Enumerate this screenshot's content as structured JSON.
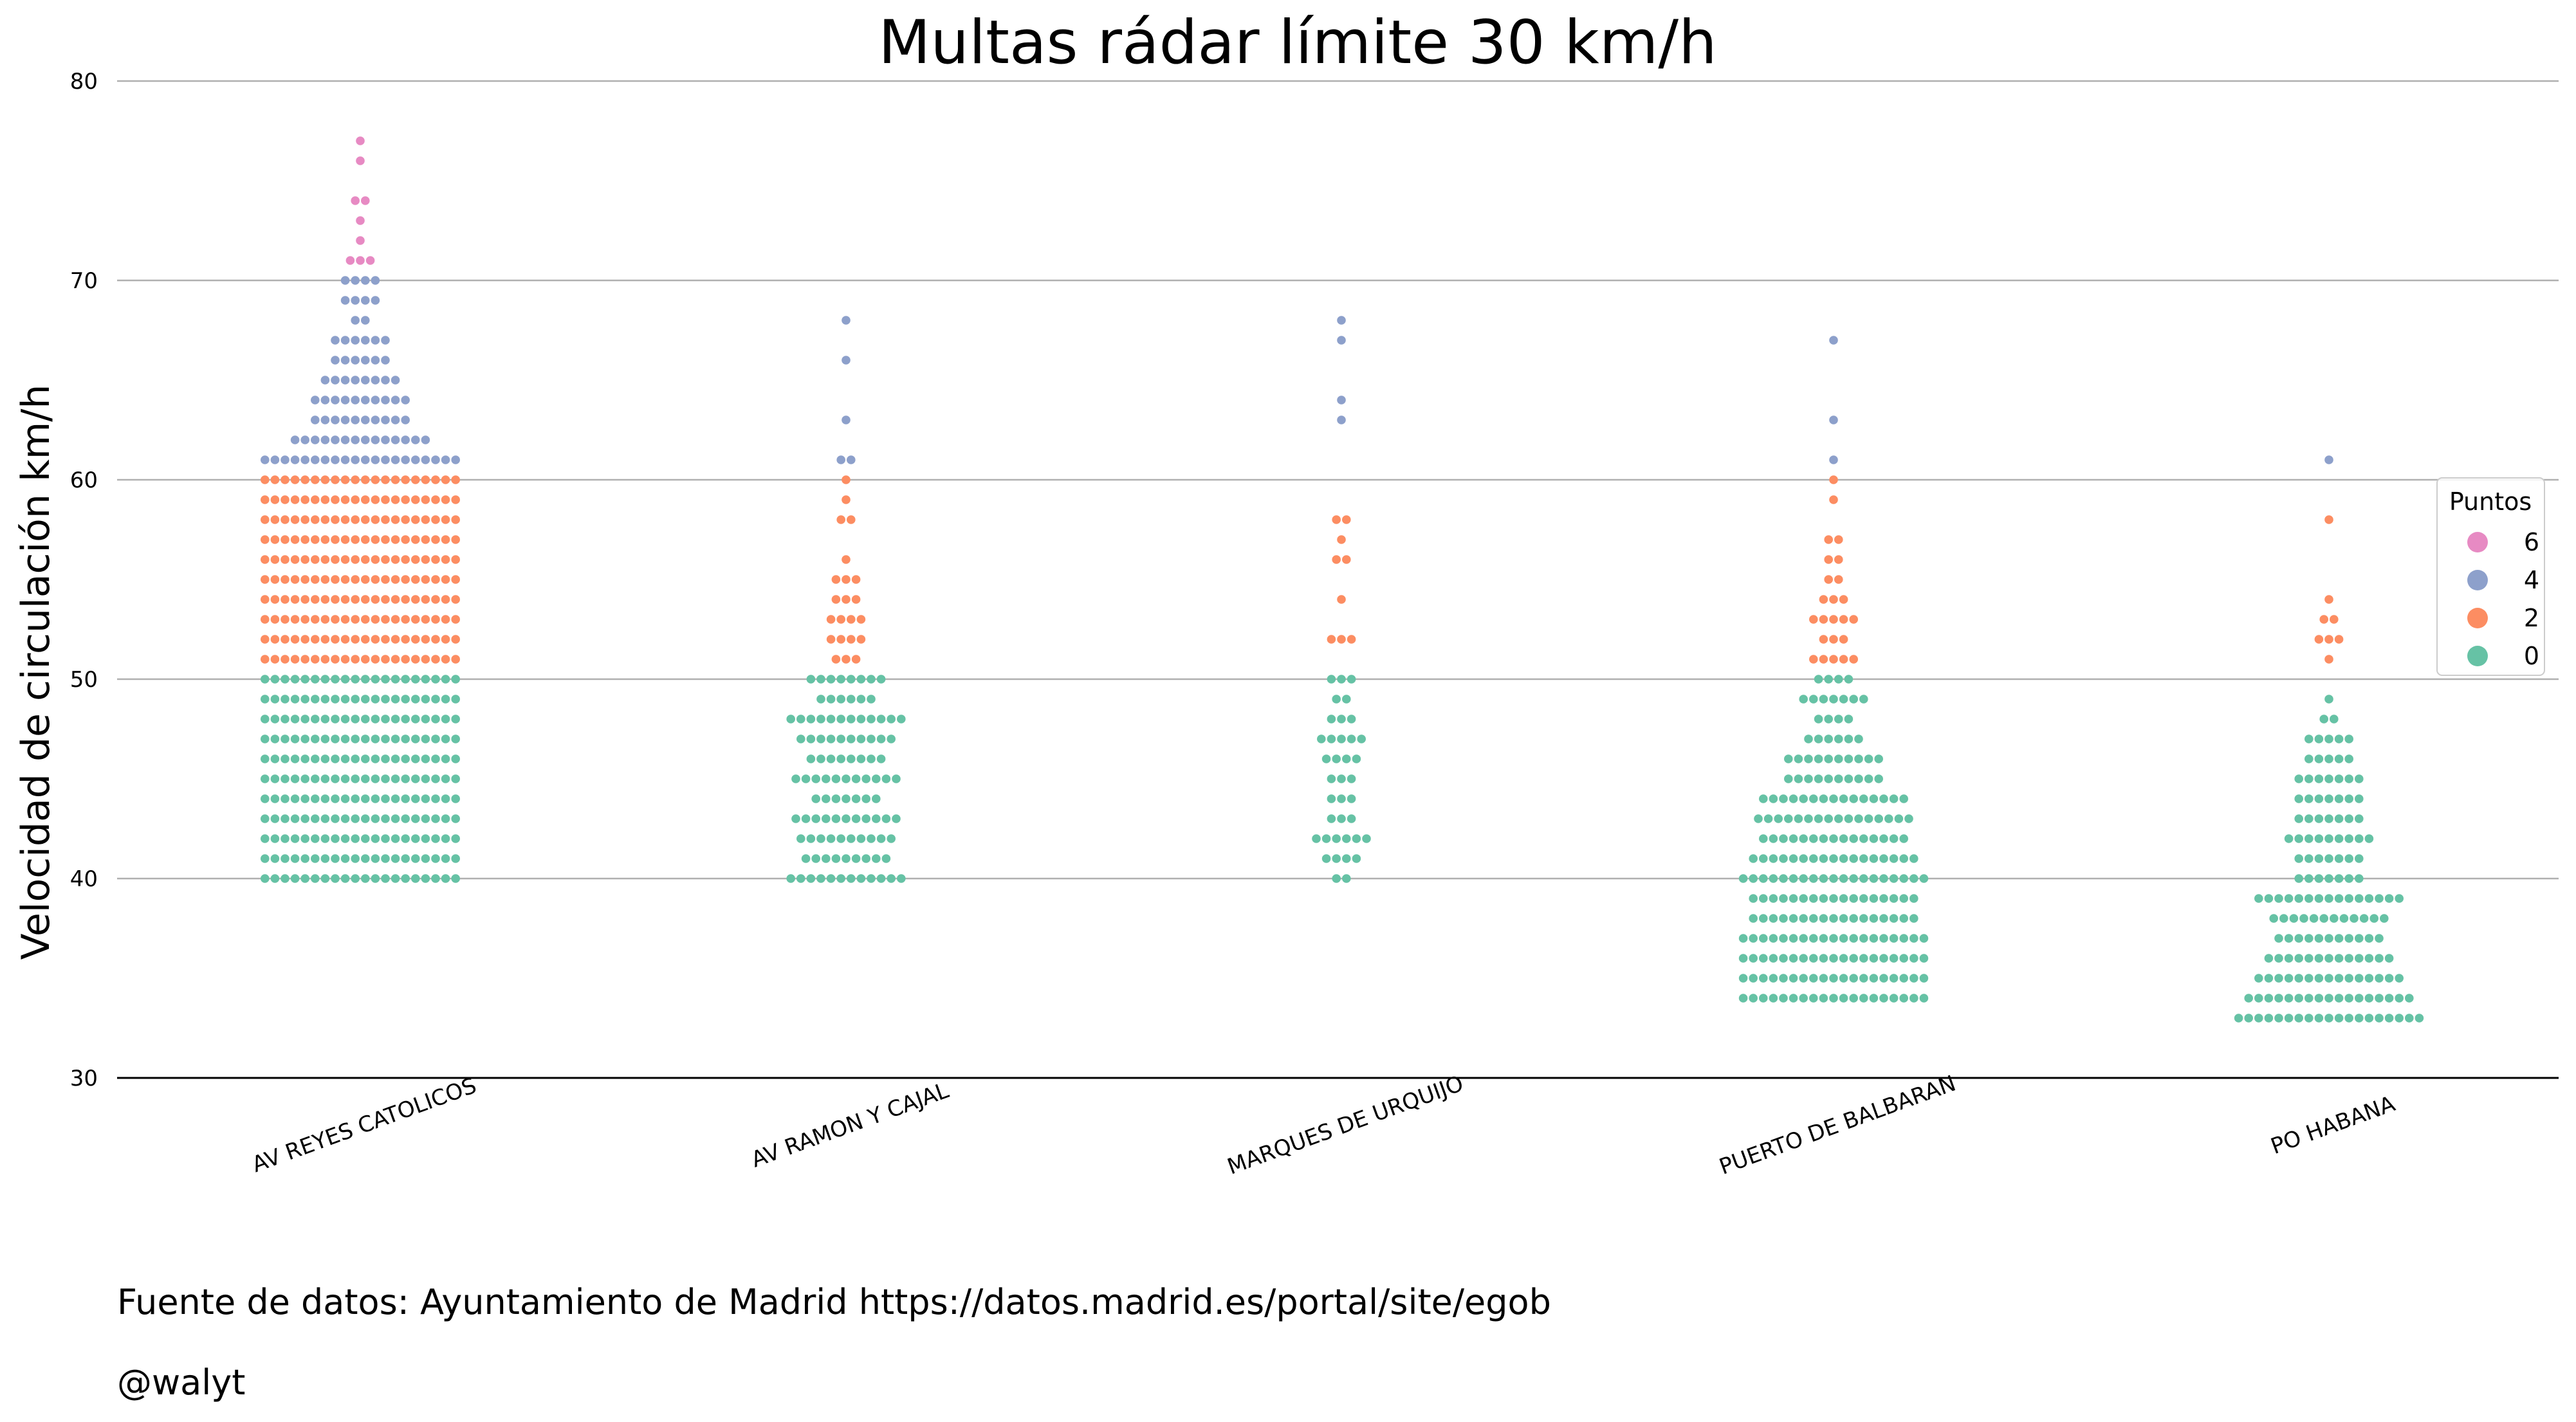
{
  "chart_data": {
    "type": "swarm",
    "title": "Multas rádar límite 30 km/h",
    "xlabel": "",
    "ylabel": "Velocidad de circulación km/h",
    "ylim": [
      30,
      80
    ],
    "yticks": [
      30,
      40,
      50,
      60,
      70,
      80
    ],
    "grid": "horizontal",
    "categories": [
      "AV REYES CATOLICOS",
      "AV RAMON Y CAJAL",
      "MARQUES DE URQUIJO",
      "PUERTO DE BALBARAN",
      "PO HABANA"
    ],
    "legend": {
      "title": "Puntos",
      "placement": "right",
      "entries": [
        {
          "label": "6",
          "color": "#e78ac3"
        },
        {
          "label": "4",
          "color": "#8da0cb"
        },
        {
          "label": "2",
          "color": "#fc8d62"
        },
        {
          "label": "0",
          "color": "#66c2a5"
        }
      ]
    },
    "colors": {
      "0": "#66c2a5",
      "2": "#fc8d62",
      "4": "#8da0cb",
      "6": "#e78ac3"
    },
    "groups": [
      {
        "category": "AV REYES CATOLICOS",
        "counts": [
          [
            40,
            20
          ],
          [
            41,
            20
          ],
          [
            42,
            20
          ],
          [
            43,
            20
          ],
          [
            44,
            20
          ],
          [
            45,
            20
          ],
          [
            46,
            20
          ],
          [
            47,
            20
          ],
          [
            48,
            20
          ],
          [
            49,
            20
          ],
          [
            50,
            20
          ],
          [
            51,
            20
          ],
          [
            52,
            20
          ],
          [
            53,
            20
          ],
          [
            54,
            20
          ],
          [
            55,
            20
          ],
          [
            56,
            20
          ],
          [
            57,
            20
          ],
          [
            58,
            20
          ],
          [
            59,
            20
          ],
          [
            60,
            20
          ],
          [
            61,
            20
          ],
          [
            62,
            14
          ],
          [
            63,
            10
          ],
          [
            64,
            10
          ],
          [
            65,
            8
          ],
          [
            66,
            6
          ],
          [
            67,
            6
          ],
          [
            68,
            2
          ],
          [
            69,
            4
          ],
          [
            70,
            4
          ],
          [
            71,
            3
          ],
          [
            72,
            1
          ],
          [
            73,
            1
          ],
          [
            74,
            2
          ],
          [
            76,
            1
          ],
          [
            77,
            1
          ]
        ]
      },
      {
        "category": "AV RAMON Y CAJAL",
        "counts": [
          [
            40,
            12
          ],
          [
            41,
            9
          ],
          [
            42,
            10
          ],
          [
            43,
            11
          ],
          [
            44,
            7
          ],
          [
            45,
            11
          ],
          [
            46,
            8
          ],
          [
            47,
            10
          ],
          [
            48,
            12
          ],
          [
            49,
            6
          ],
          [
            50,
            8
          ],
          [
            51,
            3
          ],
          [
            52,
            4
          ],
          [
            53,
            4
          ],
          [
            54,
            3
          ],
          [
            55,
            3
          ],
          [
            56,
            1
          ],
          [
            58,
            2
          ],
          [
            59,
            1
          ],
          [
            60,
            1
          ],
          [
            61,
            2
          ],
          [
            63,
            1
          ],
          [
            66,
            1
          ],
          [
            68,
            1
          ]
        ]
      },
      {
        "category": "MARQUES DE URQUIJO",
        "counts": [
          [
            40,
            2
          ],
          [
            41,
            4
          ],
          [
            42,
            6
          ],
          [
            43,
            3
          ],
          [
            44,
            3
          ],
          [
            45,
            3
          ],
          [
            46,
            4
          ],
          [
            47,
            5
          ],
          [
            48,
            3
          ],
          [
            49,
            2
          ],
          [
            50,
            3
          ],
          [
            52,
            3
          ],
          [
            54,
            1
          ],
          [
            56,
            2
          ],
          [
            57,
            1
          ],
          [
            58,
            2
          ],
          [
            63,
            1
          ],
          [
            64,
            1
          ],
          [
            67,
            1
          ],
          [
            68,
            1
          ]
        ]
      },
      {
        "category": "PUERTO DE BALBARAN",
        "counts": [
          [
            34,
            19
          ],
          [
            35,
            19
          ],
          [
            36,
            19
          ],
          [
            37,
            19
          ],
          [
            38,
            17
          ],
          [
            39,
            17
          ],
          [
            40,
            19
          ],
          [
            41,
            17
          ],
          [
            42,
            15
          ],
          [
            43,
            16
          ],
          [
            44,
            15
          ],
          [
            45,
            10
          ],
          [
            46,
            10
          ],
          [
            47,
            6
          ],
          [
            48,
            4
          ],
          [
            49,
            7
          ],
          [
            50,
            4
          ],
          [
            51,
            5
          ],
          [
            52,
            3
          ],
          [
            53,
            5
          ],
          [
            54,
            3
          ],
          [
            55,
            2
          ],
          [
            56,
            2
          ],
          [
            57,
            2
          ],
          [
            59,
            1
          ],
          [
            60,
            1
          ],
          [
            61,
            1
          ],
          [
            63,
            1
          ],
          [
            67,
            1
          ]
        ]
      },
      {
        "category": "PO HABANA",
        "counts": [
          [
            33,
            19
          ],
          [
            34,
            17
          ],
          [
            35,
            15
          ],
          [
            36,
            13
          ],
          [
            37,
            11
          ],
          [
            38,
            12
          ],
          [
            39,
            15
          ],
          [
            40,
            7
          ],
          [
            41,
            7
          ],
          [
            42,
            9
          ],
          [
            43,
            7
          ],
          [
            44,
            7
          ],
          [
            45,
            7
          ],
          [
            46,
            5
          ],
          [
            47,
            5
          ],
          [
            48,
            2
          ],
          [
            49,
            1
          ],
          [
            51,
            1
          ],
          [
            52,
            3
          ],
          [
            53,
            2
          ],
          [
            54,
            1
          ],
          [
            58,
            1
          ],
          [
            61,
            1
          ]
        ]
      }
    ]
  },
  "footnotes": {
    "source": "Fuente de datos: Ayuntamiento de Madrid https://datos.madrid.es/portal/site/egob",
    "author": "@walyt"
  }
}
